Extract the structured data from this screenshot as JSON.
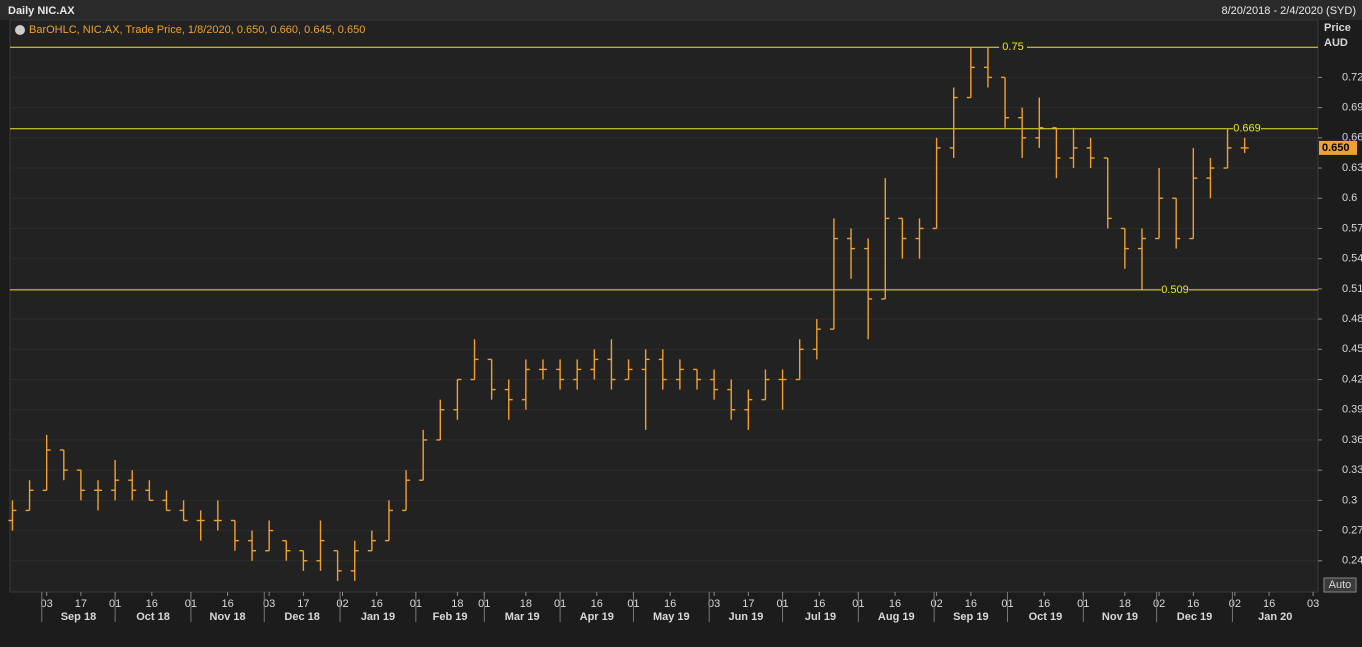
{
  "header": {
    "title": "Daily NIC.AX",
    "range": "8/20/2018 - 2/4/2020 (SYD)"
  },
  "chart_data": {
    "type": "ohlc",
    "legend": "BarOHLC, NIC.AX, Trade Price, 1/8/2020, 0.650, 0.660, 0.645, 0.650",
    "y_axis_title": "Price",
    "y_axis_unit": "AUD",
    "button": "Auto",
    "color": "#f0a030",
    "line_color": "#e8e82a",
    "xlim": [
      "2018-08-19",
      "2020-02-05"
    ],
    "ylim": [
      0.209,
      0.777
    ],
    "yticks": [
      0.24,
      0.27,
      0.3,
      0.33,
      0.36,
      0.39,
      0.42,
      0.45,
      0.48,
      0.51,
      0.54,
      0.57,
      0.6,
      0.63,
      0.66,
      0.69,
      0.72
    ],
    "xticks": [
      {
        "value": "2018-09-03",
        "label": "03"
      },
      {
        "value": "2018-09-17",
        "label": "17"
      },
      {
        "value": "2018-10-01",
        "label": "01"
      },
      {
        "value": "2018-10-16",
        "label": "16"
      },
      {
        "value": "2018-11-01",
        "label": "01"
      },
      {
        "value": "2018-11-16",
        "label": "16"
      },
      {
        "value": "2018-12-03",
        "label": "03"
      },
      {
        "value": "2018-12-17",
        "label": "17"
      },
      {
        "value": "2019-01-02",
        "label": "02"
      },
      {
        "value": "2019-01-16",
        "label": "16"
      },
      {
        "value": "2019-02-01",
        "label": "01"
      },
      {
        "value": "2019-02-18",
        "label": "18"
      },
      {
        "value": "2019-03-01",
        "label": "01"
      },
      {
        "value": "2019-03-18",
        "label": "18"
      },
      {
        "value": "2019-04-01",
        "label": "01"
      },
      {
        "value": "2019-04-16",
        "label": "16"
      },
      {
        "value": "2019-05-01",
        "label": "01"
      },
      {
        "value": "2019-05-16",
        "label": "16"
      },
      {
        "value": "2019-06-03",
        "label": "03"
      },
      {
        "value": "2019-06-17",
        "label": "17"
      },
      {
        "value": "2019-07-01",
        "label": "01"
      },
      {
        "value": "2019-07-16",
        "label": "16"
      },
      {
        "value": "2019-08-01",
        "label": "01"
      },
      {
        "value": "2019-08-16",
        "label": "16"
      },
      {
        "value": "2019-09-02",
        "label": "02"
      },
      {
        "value": "2019-09-16",
        "label": "16"
      },
      {
        "value": "2019-10-01",
        "label": "01"
      },
      {
        "value": "2019-10-16",
        "label": "16"
      },
      {
        "value": "2019-11-01",
        "label": "01"
      },
      {
        "value": "2019-11-18",
        "label": "18"
      },
      {
        "value": "2019-12-02",
        "label": "02"
      },
      {
        "value": "2019-12-16",
        "label": "16"
      },
      {
        "value": "2020-01-02",
        "label": "02"
      },
      {
        "value": "2020-01-16",
        "label": "16"
      },
      {
        "value": "2020-02-03",
        "label": "03"
      }
    ],
    "months": [
      {
        "value": "2018-09-01",
        "label": "Sep 18"
      },
      {
        "value": "2018-10-01",
        "label": "Oct 18"
      },
      {
        "value": "2018-11-01",
        "label": "Nov 18"
      },
      {
        "value": "2018-12-01",
        "label": "Dec 18"
      },
      {
        "value": "2019-01-01",
        "label": "Jan 19"
      },
      {
        "value": "2019-02-01",
        "label": "Feb 19"
      },
      {
        "value": "2019-03-01",
        "label": "Mar 19"
      },
      {
        "value": "2019-04-01",
        "label": "Apr 19"
      },
      {
        "value": "2019-05-01",
        "label": "May 19"
      },
      {
        "value": "2019-06-01",
        "label": "Jun 19"
      },
      {
        "value": "2019-07-01",
        "label": "Jul 19"
      },
      {
        "value": "2019-08-01",
        "label": "Aug 19"
      },
      {
        "value": "2019-09-01",
        "label": "Sep 19"
      },
      {
        "value": "2019-10-01",
        "label": "Oct 19"
      },
      {
        "value": "2019-11-01",
        "label": "Nov 19"
      },
      {
        "value": "2019-12-01",
        "label": "Dec 19"
      },
      {
        "value": "2020-01-01",
        "label": "Jan 20"
      }
    ],
    "hlines": [
      0.75,
      0.669,
      0.509
    ],
    "last_price": {
      "value": 0.65,
      "label": "0.650"
    },
    "series": [
      {
        "x": [
          "2018-08-20",
          "2018-08-27",
          "2018-09-03",
          "2018-09-10",
          "2018-09-17",
          "2018-09-24",
          "2018-10-01",
          "2018-10-08",
          "2018-10-15",
          "2018-10-22",
          "2018-10-29",
          "2018-11-05",
          "2018-11-12",
          "2018-11-19",
          "2018-11-26",
          "2018-12-03",
          "2018-12-10",
          "2018-12-17",
          "2018-12-24",
          "2018-12-31",
          "2019-01-07",
          "2019-01-14",
          "2019-01-21",
          "2019-01-28",
          "2019-02-04",
          "2019-02-11",
          "2019-02-18",
          "2019-02-25",
          "2019-03-04",
          "2019-03-11",
          "2019-03-18",
          "2019-03-25",
          "2019-04-01",
          "2019-04-08",
          "2019-04-15",
          "2019-04-22",
          "2019-04-29",
          "2019-05-06",
          "2019-05-13",
          "2019-05-20",
          "2019-05-27",
          "2019-06-03",
          "2019-06-10",
          "2019-06-17",
          "2019-06-24",
          "2019-07-01",
          "2019-07-08",
          "2019-07-15",
          "2019-07-22",
          "2019-07-29",
          "2019-08-05",
          "2019-08-12",
          "2019-08-19",
          "2019-08-26",
          "2019-09-02",
          "2019-09-09",
          "2019-09-16",
          "2019-09-23",
          "2019-09-30",
          "2019-10-07",
          "2019-10-14",
          "2019-10-21",
          "2019-10-28",
          "2019-11-04",
          "2019-11-11",
          "2019-11-18",
          "2019-11-25",
          "2019-12-02",
          "2019-12-09",
          "2019-12-16",
          "2019-12-23",
          "2019-12-30",
          "2020-01-06"
        ],
        "open": [
          0.28,
          0.29,
          0.31,
          0.35,
          0.33,
          0.31,
          0.31,
          0.32,
          0.31,
          0.3,
          0.29,
          0.28,
          0.28,
          0.28,
          0.26,
          0.25,
          0.26,
          0.25,
          0.24,
          0.25,
          0.23,
          0.25,
          0.26,
          0.29,
          0.32,
          0.36,
          0.39,
          0.42,
          0.44,
          0.41,
          0.4,
          0.43,
          0.43,
          0.42,
          0.43,
          0.44,
          0.42,
          0.43,
          0.44,
          0.42,
          0.43,
          0.42,
          0.41,
          0.39,
          0.4,
          0.42,
          0.42,
          0.45,
          0.47,
          0.56,
          0.55,
          0.5,
          0.58,
          0.56,
          0.57,
          0.65,
          0.7,
          0.73,
          0.72,
          0.68,
          0.66,
          0.67,
          0.64,
          0.65,
          0.64,
          0.57,
          0.55,
          0.56,
          0.6,
          0.56,
          0.62,
          0.63,
          0.65
        ],
        "high": [
          0.3,
          0.32,
          0.365,
          0.35,
          0.33,
          0.32,
          0.34,
          0.33,
          0.32,
          0.31,
          0.3,
          0.29,
          0.3,
          0.28,
          0.27,
          0.28,
          0.26,
          0.25,
          0.28,
          0.25,
          0.26,
          0.27,
          0.3,
          0.33,
          0.37,
          0.4,
          0.42,
          0.46,
          0.44,
          0.42,
          0.44,
          0.44,
          0.44,
          0.44,
          0.45,
          0.46,
          0.44,
          0.45,
          0.45,
          0.44,
          0.43,
          0.43,
          0.42,
          0.41,
          0.43,
          0.43,
          0.46,
          0.48,
          0.58,
          0.57,
          0.56,
          0.62,
          0.58,
          0.58,
          0.66,
          0.71,
          0.75,
          0.75,
          0.72,
          0.69,
          0.7,
          0.67,
          0.67,
          0.66,
          0.64,
          0.57,
          0.57,
          0.63,
          0.6,
          0.65,
          0.64,
          0.669,
          0.66
        ],
        "low": [
          0.27,
          0.29,
          0.31,
          0.32,
          0.3,
          0.29,
          0.3,
          0.3,
          0.3,
          0.29,
          0.28,
          0.26,
          0.27,
          0.25,
          0.24,
          0.25,
          0.24,
          0.23,
          0.23,
          0.22,
          0.22,
          0.25,
          0.26,
          0.29,
          0.32,
          0.36,
          0.38,
          0.42,
          0.4,
          0.38,
          0.39,
          0.42,
          0.41,
          0.41,
          0.42,
          0.41,
          0.42,
          0.37,
          0.41,
          0.41,
          0.41,
          0.4,
          0.38,
          0.37,
          0.4,
          0.39,
          0.42,
          0.44,
          0.47,
          0.52,
          0.46,
          0.5,
          0.54,
          0.54,
          0.57,
          0.64,
          0.7,
          0.71,
          0.67,
          0.64,
          0.65,
          0.62,
          0.63,
          0.63,
          0.57,
          0.53,
          0.509,
          0.56,
          0.55,
          0.56,
          0.6,
          0.63,
          0.645
        ],
        "close": [
          0.29,
          0.31,
          0.35,
          0.33,
          0.31,
          0.31,
          0.32,
          0.31,
          0.3,
          0.29,
          0.28,
          0.28,
          0.28,
          0.26,
          0.25,
          0.27,
          0.25,
          0.24,
          0.26,
          0.23,
          0.25,
          0.26,
          0.29,
          0.32,
          0.36,
          0.39,
          0.42,
          0.44,
          0.41,
          0.4,
          0.43,
          0.43,
          0.42,
          0.43,
          0.44,
          0.42,
          0.43,
          0.44,
          0.42,
          0.43,
          0.42,
          0.41,
          0.39,
          0.4,
          0.42,
          0.42,
          0.45,
          0.47,
          0.56,
          0.55,
          0.5,
          0.58,
          0.56,
          0.57,
          0.65,
          0.7,
          0.73,
          0.72,
          0.68,
          0.66,
          0.67,
          0.64,
          0.65,
          0.64,
          0.58,
          0.55,
          0.56,
          0.6,
          0.56,
          0.62,
          0.63,
          0.65,
          0.65
        ]
      }
    ]
  }
}
